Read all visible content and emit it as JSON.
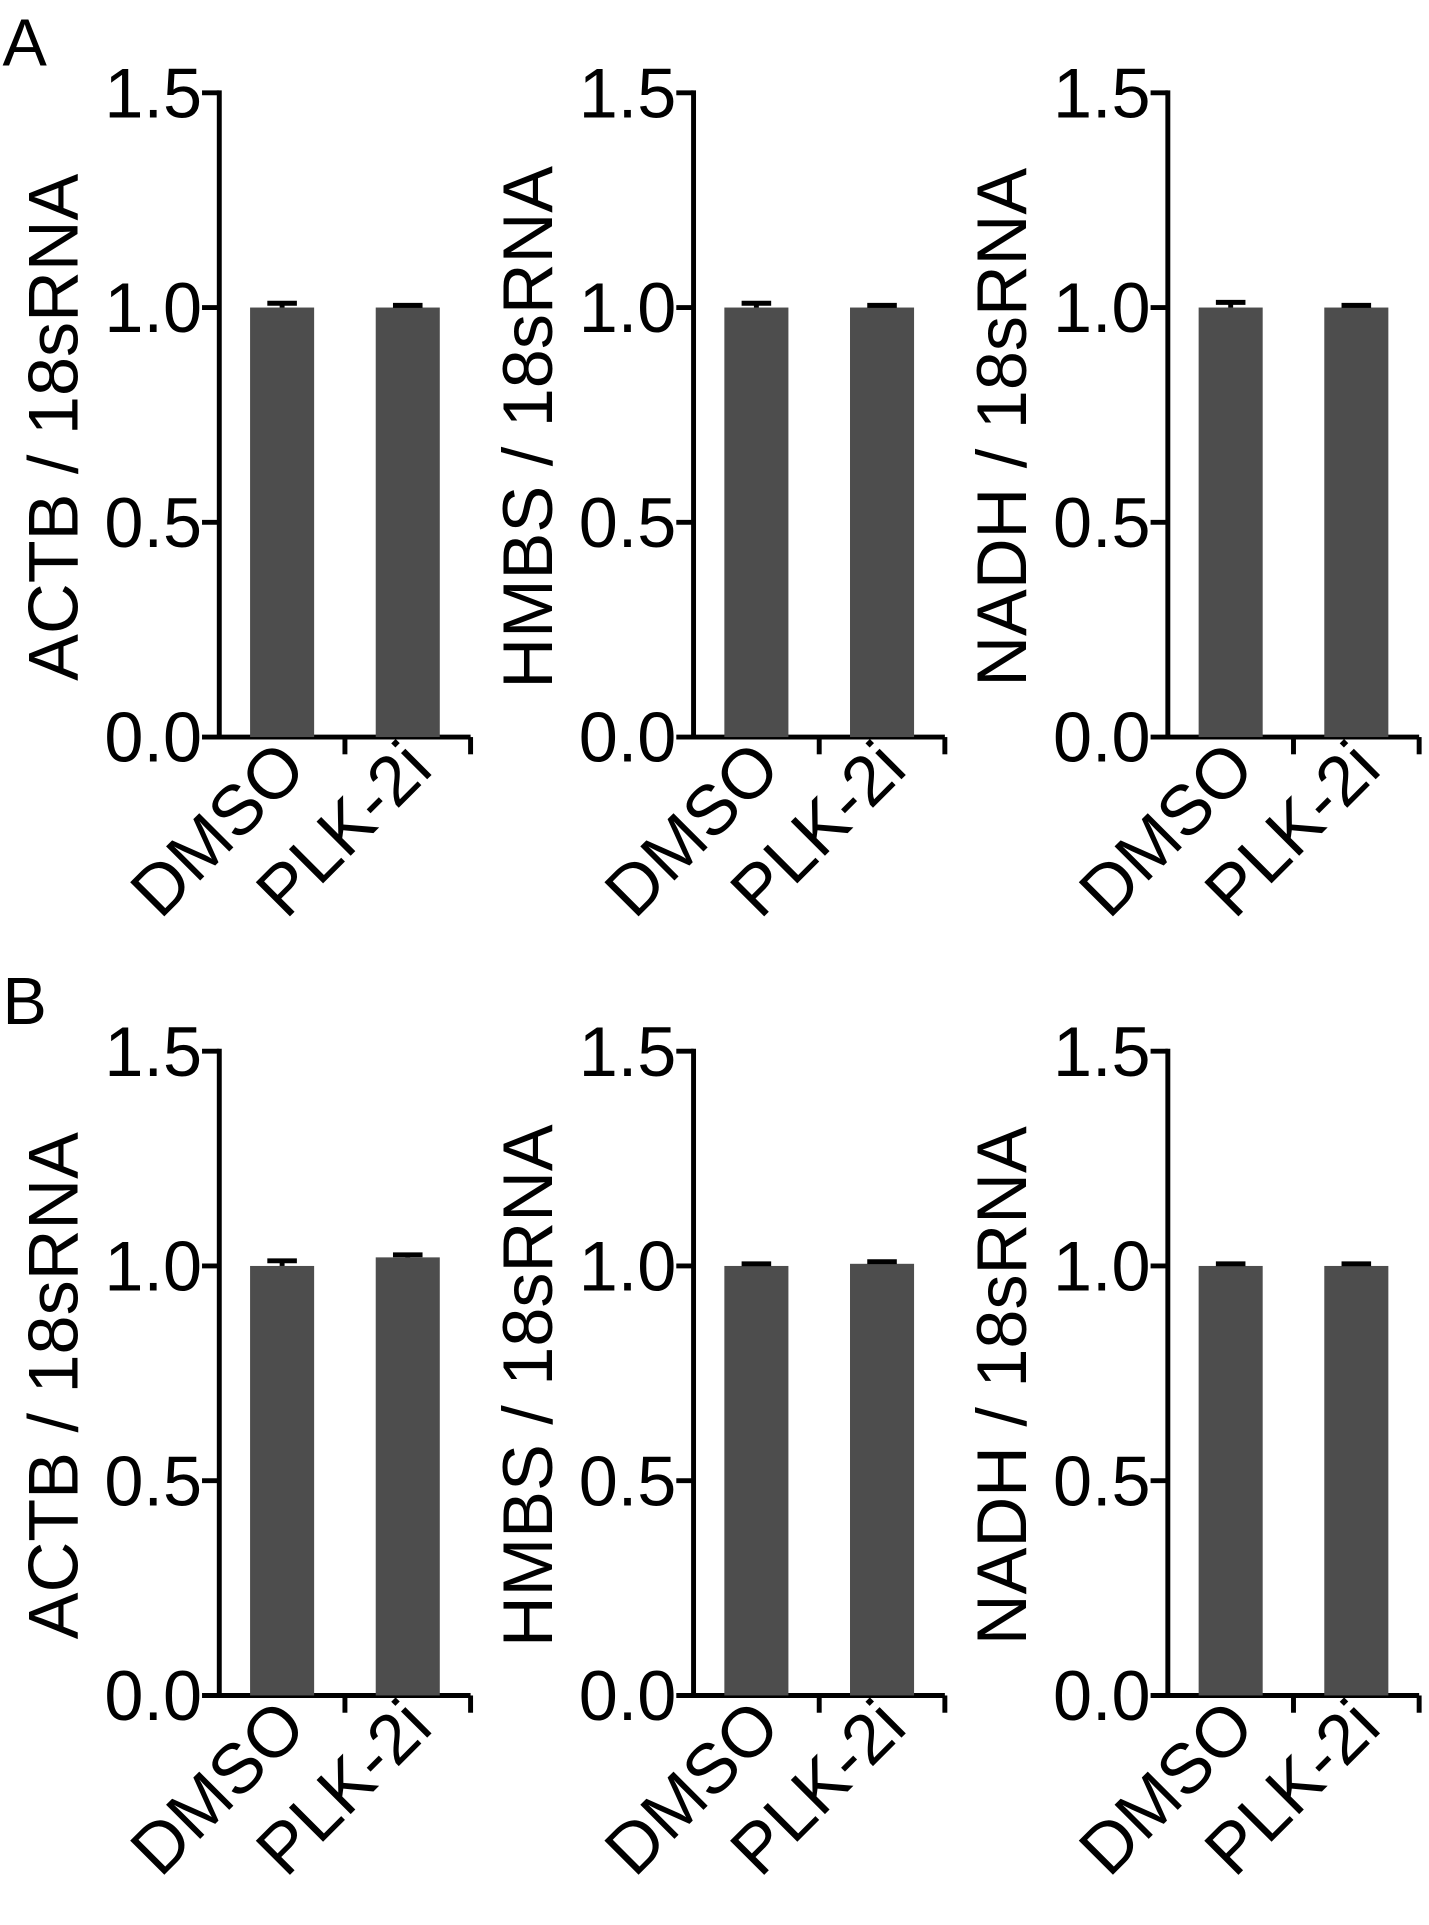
{
  "chart_data": [
    {
      "type": "bar",
      "panel": "A",
      "ylabel": "ACTB / 18sRNA",
      "categories": [
        "DMSO",
        "PLK-2i"
      ],
      "values": [
        1.0,
        1.0
      ],
      "errors": [
        0.01,
        0.005
      ],
      "color": "#4d4d4d",
      "ylim": [
        0,
        1.5
      ],
      "yticks": [
        {
          "value": 0,
          "label": "0.0"
        },
        0.5,
        {
          "value": 1,
          "label": "1.0"
        },
        1.5
      ]
    },
    {
      "type": "bar",
      "ylabel": "HMBS / 18sRNA",
      "categories": [
        "DMSO",
        "PLK-2i"
      ],
      "values": [
        1.0,
        1.0
      ],
      "errors": [
        0.01,
        0.005
      ],
      "color": "#4d4d4d",
      "ylim": [
        0,
        1.5
      ],
      "yticks": [
        {
          "value": 0,
          "label": "0.0"
        },
        0.5,
        {
          "value": 1,
          "label": "1.0"
        },
        1.5
      ]
    },
    {
      "type": "bar",
      "ylabel": "NADH / 18sRNA",
      "categories": [
        "DMSO",
        "PLK-2i"
      ],
      "values": [
        1.0,
        1.0
      ],
      "errors": [
        0.012,
        0.005
      ],
      "color": "#4d4d4d",
      "ylim": [
        0,
        1.5
      ],
      "yticks": [
        {
          "value": 0,
          "label": "0.0"
        },
        0.5,
        {
          "value": 1,
          "label": "1.0"
        },
        1.5
      ]
    },
    {
      "type": "bar",
      "panel": "B",
      "ylabel": "ACTB / 18sRNA",
      "categories": [
        "DMSO",
        "PLK-2i"
      ],
      "values": [
        1.0,
        1.02
      ],
      "errors": [
        0.012,
        0.006
      ],
      "color": "#4d4d4d",
      "ylim": [
        0,
        1.5
      ],
      "yticks": [
        {
          "value": 0,
          "label": "0.0"
        },
        0.5,
        {
          "value": 1,
          "label": "1.0"
        },
        1.5
      ]
    },
    {
      "type": "bar",
      "ylabel": "HMBS / 18sRNA",
      "categories": [
        "DMSO",
        "PLK-2i"
      ],
      "values": [
        1.0,
        1.005
      ],
      "errors": [
        0.005,
        0.005
      ],
      "color": "#4d4d4d",
      "ylim": [
        0,
        1.5
      ],
      "yticks": [
        {
          "value": 0,
          "label": "0.0"
        },
        0.5,
        {
          "value": 1,
          "label": "1.0"
        },
        1.5
      ]
    },
    {
      "type": "bar",
      "ylabel": "NADH / 18sRNA",
      "categories": [
        "DMSO",
        "PLK-2i"
      ],
      "values": [
        1.0,
        1.0
      ],
      "errors": [
        0.005,
        0.005
      ],
      "color": "#4d4d4d",
      "ylim": [
        0,
        1.5
      ],
      "yticks": [
        {
          "value": 0,
          "label": "0.0"
        },
        0.5,
        {
          "value": 1,
          "label": "1.0"
        },
        1.5
      ]
    }
  ]
}
